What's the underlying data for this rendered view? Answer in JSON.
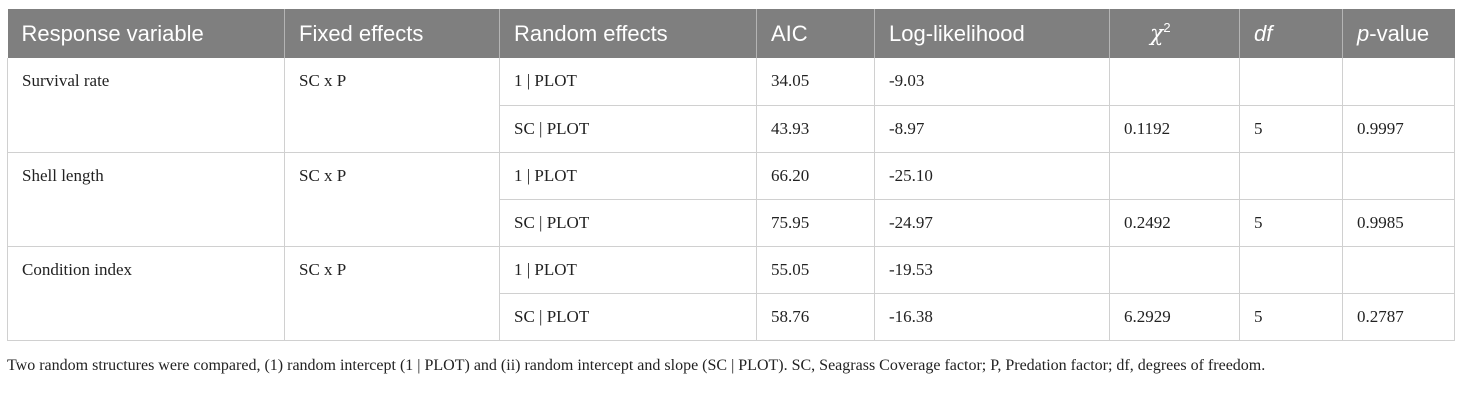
{
  "table": {
    "headers": {
      "response": "Response variable",
      "fixed": "Fixed effects",
      "random": "Random effects",
      "aic": "AIC",
      "loglik": "Log-likelihood",
      "chi_sym": "χ",
      "chi_sup": "2",
      "df": "df",
      "p_italic": "p",
      "p_rest": "-value"
    },
    "groups": [
      {
        "response": "Survival rate",
        "fixed": "SC x P",
        "rows": [
          {
            "random": "1 | PLOT",
            "aic": "34.05",
            "loglik": "-9.03",
            "chi2": "",
            "df": "",
            "p": ""
          },
          {
            "random": "SC | PLOT",
            "aic": "43.93",
            "loglik": "-8.97",
            "chi2": "0.1192",
            "df": "5",
            "p": "0.9997"
          }
        ]
      },
      {
        "response": "Shell length",
        "fixed": "SC x P",
        "rows": [
          {
            "random": "1 | PLOT",
            "aic": "66.20",
            "loglik": "-25.10",
            "chi2": "",
            "df": "",
            "p": ""
          },
          {
            "random": "SC | PLOT",
            "aic": "75.95",
            "loglik": "-24.97",
            "chi2": "0.2492",
            "df": "5",
            "p": "0.9985"
          }
        ]
      },
      {
        "response": "Condition index",
        "fixed": "SC x P",
        "rows": [
          {
            "random": "1 | PLOT",
            "aic": "55.05",
            "loglik": "-19.53",
            "chi2": "",
            "df": "",
            "p": ""
          },
          {
            "random": "SC | PLOT",
            "aic": "58.76",
            "loglik": "-16.38",
            "chi2": "6.2929",
            "df": "5",
            "p": "0.2787"
          }
        ]
      }
    ]
  },
  "footnote": "Two random structures were compared, (1) random intercept (1 | PLOT) and (ii) random intercept and slope (SC | PLOT).  SC, Seagrass Coverage factor; P, Predation factor; df, degrees of freedom."
}
